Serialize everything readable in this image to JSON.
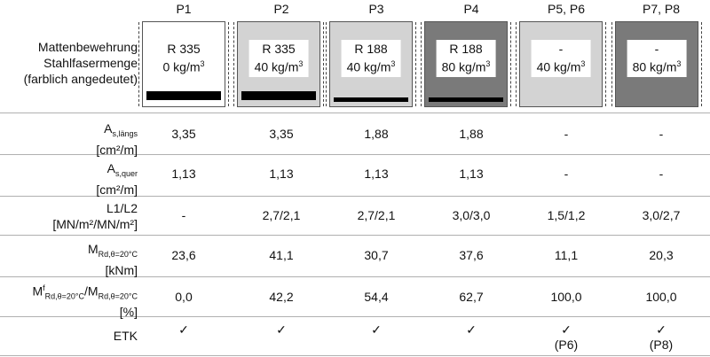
{
  "columns": [
    "P1",
    "P2",
    "P3",
    "P4",
    "P5, P6",
    "P7, P8"
  ],
  "header_label": [
    "Mattenbewehrung",
    "Stahlfasermenge",
    "(farblich angedeutet)"
  ],
  "panels": [
    {
      "line1": "R 335",
      "line2": "0 kg/m",
      "fill": "#ffffff",
      "label_bg": false,
      "bar": 10
    },
    {
      "line1": "R 335",
      "line2": "40 kg/m",
      "fill": "#d3d3d3",
      "label_bg": true,
      "bar": 10
    },
    {
      "line1": "R 188",
      "line2": "40 kg/m",
      "fill": "#d3d3d3",
      "label_bg": true,
      "bar": 5
    },
    {
      "line1": "R 188",
      "line2": "80 kg/m",
      "fill": "#7a7a7a",
      "label_bg": true,
      "bar": 5
    },
    {
      "line1": "-",
      "line2": "40 kg/m",
      "fill": "#d3d3d3",
      "label_bg": true,
      "bar": 0
    },
    {
      "line1": "-",
      "line2": "80 kg/m",
      "fill": "#7a7a7a",
      "label_bg": true,
      "bar": 0
    }
  ],
  "superscript_three": "3",
  "rows": [
    {
      "label_main": "A",
      "label_sub": "s,längs",
      "label_unit": "[cm²/m]",
      "values": [
        "3,35",
        "3,35",
        "1,88",
        "1,88",
        "-",
        "-"
      ]
    },
    {
      "label_main": "A",
      "label_sub": "s,quer",
      "label_unit": "[cm²/m]",
      "values": [
        "1,13",
        "1,13",
        "1,13",
        "1,13",
        "-",
        "-"
      ]
    },
    {
      "label_main": "L1/L2",
      "label_sub": "",
      "label_unit": "[MN/m²/MN/m²]",
      "values": [
        "-",
        "2,7/2,1",
        "2,7/2,1",
        "3,0/3,0",
        "1,5/1,2",
        "3,0/2,7"
      ]
    },
    {
      "label_main": "M",
      "label_sub": "Rd,θ=20°C",
      "label_unit": "[kNm]",
      "values": [
        "23,6",
        "41,1",
        "30,7",
        "37,6",
        "11,1",
        "20,3"
      ]
    },
    {
      "label_main": "M",
      "label_sup": "f",
      "label_sub": "Rd,θ=20°C",
      "label_mid": "/M",
      "label_sub2": "Rd,θ=20°C",
      "label_unit": "[%]",
      "values": [
        "0,0",
        "42,2",
        "54,4",
        "62,7",
        "100,0",
        "100,0"
      ]
    },
    {
      "label_main": "ETK",
      "values": [
        "✓",
        "✓",
        "✓",
        "✓",
        "✓",
        "✓"
      ],
      "notes": [
        "",
        "",
        "",
        "",
        "(P6)",
        "(P8)"
      ]
    }
  ]
}
